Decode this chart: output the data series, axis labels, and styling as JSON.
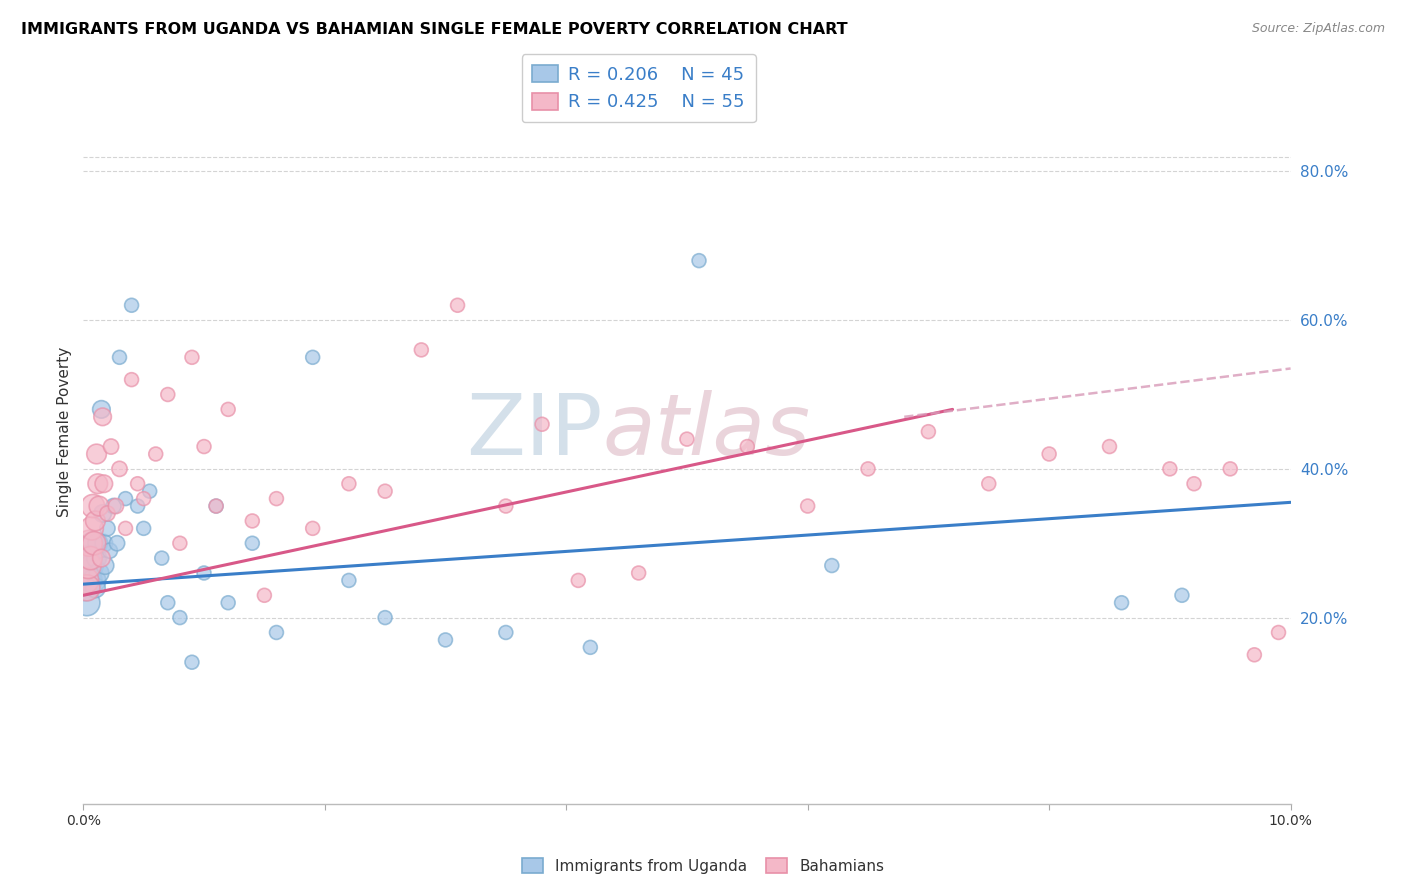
{
  "title": "IMMIGRANTS FROM UGANDA VS BAHAMIAN SINGLE FEMALE POVERTY CORRELATION CHART",
  "source": "Source: ZipAtlas.com",
  "ylabel": "Single Female Poverty",
  "xlim": [
    0.0,
    10.0
  ],
  "ylim": [
    -5.0,
    95.0
  ],
  "yticks_right": [
    20.0,
    40.0,
    60.0,
    80.0
  ],
  "yticks_grid": [
    20.0,
    40.0,
    60.0,
    80.0
  ],
  "legend_blue_R": "R = 0.206",
  "legend_blue_N": "N = 45",
  "legend_pink_R": "R = 0.425",
  "legend_pink_N": "N = 55",
  "blue_color": "#a8c8e8",
  "pink_color": "#f4b8c8",
  "blue_outline": "#7aabcf",
  "pink_outline": "#e890a8",
  "blue_line_color": "#3a7ec8",
  "pink_line_color": "#d85888",
  "pink_dash_color": "#d89ab8",
  "watermark_color": "#d0dde8",
  "watermark_color2": "#e8d0d8",
  "background_color": "#ffffff",
  "grid_color": "#d0d0d0",
  "blue_scatter_x": [
    0.02,
    0.03,
    0.04,
    0.05,
    0.06,
    0.07,
    0.08,
    0.09,
    0.1,
    0.11,
    0.12,
    0.13,
    0.15,
    0.16,
    0.17,
    0.18,
    0.2,
    0.22,
    0.25,
    0.28,
    0.3,
    0.35,
    0.4,
    0.45,
    0.5,
    0.55,
    0.65,
    0.7,
    0.8,
    0.9,
    1.0,
    1.1,
    1.2,
    1.4,
    1.6,
    1.9,
    2.2,
    2.5,
    3.0,
    3.5,
    4.2,
    5.1,
    6.2,
    8.6,
    9.1
  ],
  "blue_scatter_y": [
    24,
    22,
    26,
    28,
    25,
    27,
    30,
    25,
    24,
    28,
    30,
    26,
    48,
    34,
    30,
    27,
    32,
    29,
    35,
    30,
    55,
    36,
    62,
    35,
    32,
    37,
    28,
    22,
    20,
    14,
    26,
    35,
    22,
    30,
    18,
    55,
    25,
    20,
    17,
    18,
    16,
    68,
    27,
    22,
    23
  ],
  "blue_scatter_sizes": [
    350,
    350,
    350,
    350,
    280,
    280,
    280,
    280,
    200,
    200,
    200,
    200,
    160,
    160,
    160,
    160,
    120,
    120,
    120,
    120,
    100,
    100,
    100,
    100,
    100,
    100,
    100,
    100,
    100,
    100,
    100,
    100,
    100,
    100,
    100,
    100,
    100,
    100,
    100,
    100,
    100,
    100,
    100,
    100,
    100
  ],
  "pink_scatter_x": [
    0.02,
    0.03,
    0.04,
    0.05,
    0.06,
    0.07,
    0.08,
    0.09,
    0.1,
    0.11,
    0.12,
    0.13,
    0.15,
    0.16,
    0.17,
    0.2,
    0.23,
    0.27,
    0.3,
    0.35,
    0.4,
    0.45,
    0.5,
    0.6,
    0.7,
    0.8,
    0.9,
    1.0,
    1.1,
    1.2,
    1.4,
    1.5,
    1.6,
    1.9,
    2.2,
    2.5,
    2.8,
    3.1,
    3.5,
    3.8,
    4.1,
    4.6,
    5.0,
    5.5,
    6.0,
    6.5,
    7.0,
    7.5,
    8.0,
    8.5,
    9.0,
    9.2,
    9.5,
    9.7,
    9.9
  ],
  "pink_scatter_y": [
    25,
    24,
    27,
    30,
    28,
    32,
    35,
    30,
    33,
    42,
    38,
    35,
    28,
    47,
    38,
    34,
    43,
    35,
    40,
    32,
    52,
    38,
    36,
    42,
    50,
    30,
    55,
    43,
    35,
    48,
    33,
    23,
    36,
    32,
    38,
    37,
    56,
    62,
    35,
    46,
    25,
    26,
    44,
    43,
    35,
    40,
    45,
    38,
    42,
    43,
    40,
    38,
    40,
    15,
    18
  ],
  "pink_scatter_sizes": [
    350,
    350,
    350,
    350,
    280,
    280,
    280,
    280,
    200,
    200,
    200,
    200,
    160,
    160,
    160,
    120,
    120,
    120,
    120,
    100,
    100,
    100,
    100,
    100,
    100,
    100,
    100,
    100,
    100,
    100,
    100,
    100,
    100,
    100,
    100,
    100,
    100,
    100,
    100,
    100,
    100,
    100,
    100,
    100,
    100,
    100,
    100,
    100,
    100,
    100,
    100,
    100,
    100,
    100,
    100
  ],
  "blue_line": {
    "x0": 0.0,
    "x1": 10.0,
    "y0": 24.5,
    "y1": 35.5
  },
  "pink_line_solid": {
    "x0": 0.0,
    "x1": 7.2,
    "y0": 23.0,
    "y1": 48.0
  },
  "pink_line_dash": {
    "x0": 6.8,
    "x1": 10.0,
    "y0": 47.0,
    "y1": 53.5
  }
}
